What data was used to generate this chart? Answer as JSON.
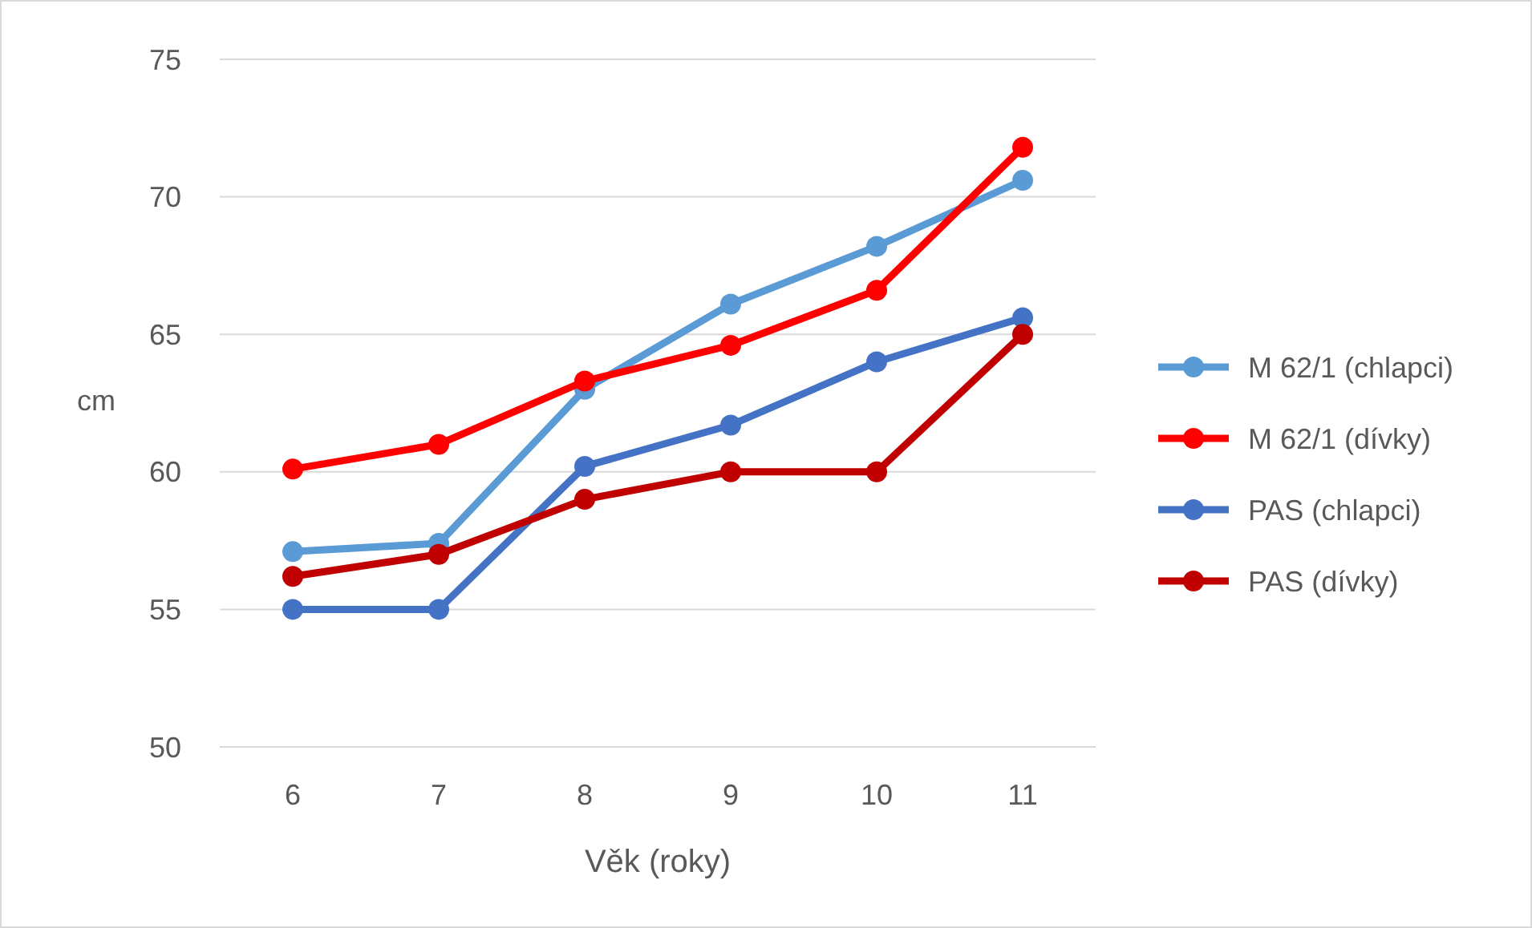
{
  "chart_data": {
    "type": "line",
    "xlabel": "Věk (roky)",
    "ylabel": "cm",
    "categories": [
      "6",
      "7",
      "8",
      "9",
      "10",
      "11"
    ],
    "ylim": [
      50,
      75
    ],
    "yticks": [
      50,
      55,
      60,
      65,
      70,
      75
    ],
    "grid": "y",
    "legend": "right",
    "marker": "circle",
    "series": [
      {
        "name": "M 62/1 (chlapci)",
        "color": "#5b9bd5",
        "values": [
          57.1,
          57.4,
          63.0,
          66.1,
          68.2,
          70.6
        ]
      },
      {
        "name": "M 62/1 (dívky)",
        "color": "#ff0000",
        "values": [
          60.1,
          61.0,
          63.3,
          64.6,
          66.6,
          71.8
        ]
      },
      {
        "name": "PAS (chlapci)",
        "color": "#4472c4",
        "values": [
          55.0,
          55.0,
          60.2,
          61.7,
          64.0,
          65.6
        ]
      },
      {
        "name": "PAS (dívky)",
        "color": "#c00000",
        "values": [
          56.2,
          57.0,
          59.0,
          60.0,
          60.0,
          65.0
        ]
      }
    ]
  }
}
